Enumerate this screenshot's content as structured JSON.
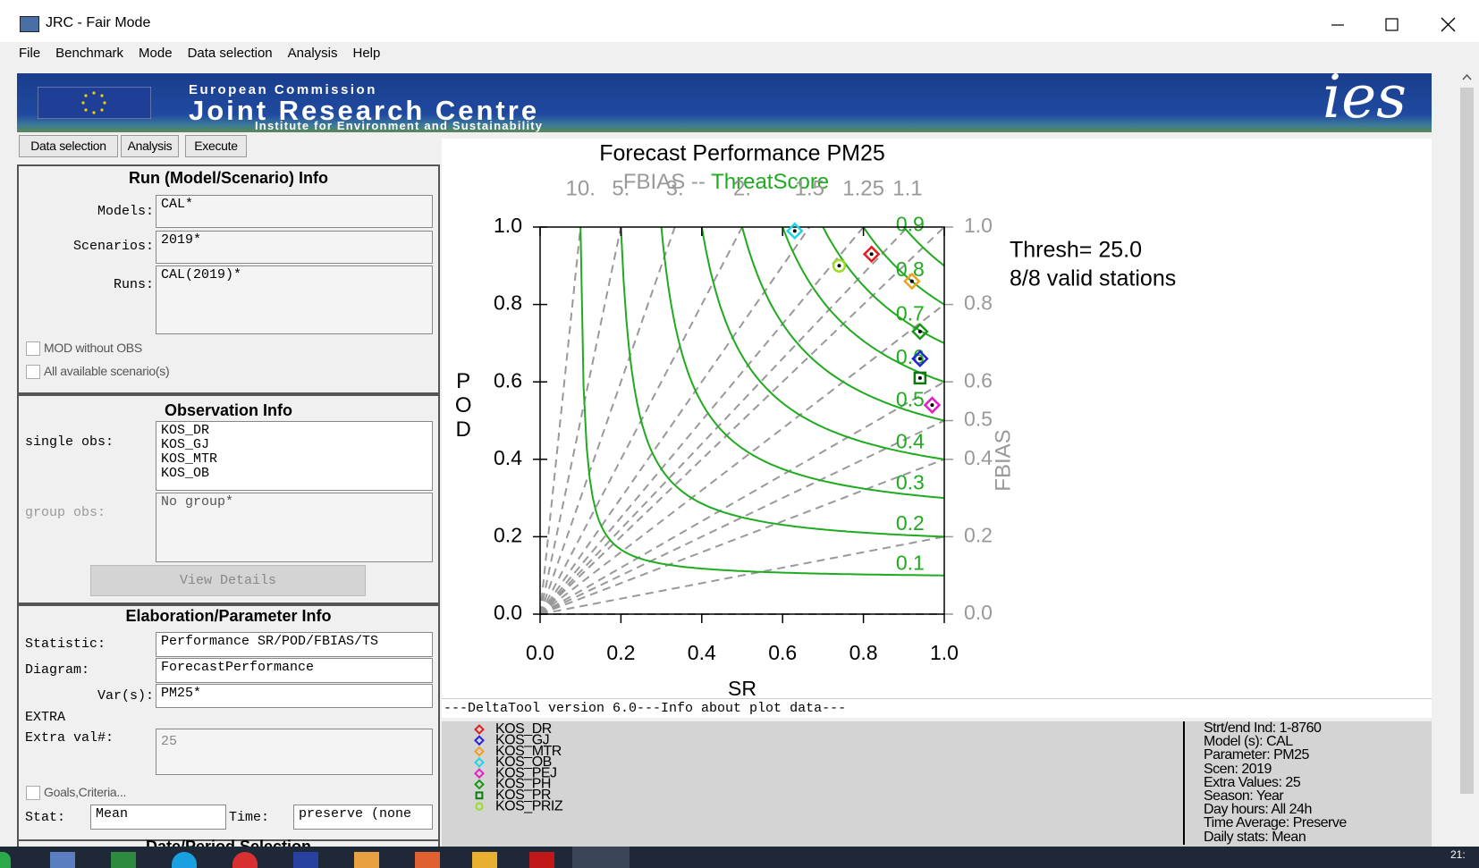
{
  "window": {
    "title": "JRC - Fair Mode"
  },
  "menu": [
    "File",
    "Benchmark",
    "Mode",
    "Data selection",
    "Analysis",
    "Help"
  ],
  "banner": {
    "org": "European Commission",
    "name": "Joint Research Centre",
    "institute": "Institute for Environment and Sustainability",
    "logo": "ies"
  },
  "tabs": [
    "Data selection",
    "Analysis",
    "Execute"
  ],
  "run_info": {
    "title": "Run (Model/Scenario) Info",
    "models_label": "Models:",
    "models": "CAL*",
    "scenarios_label": "Scenarios:",
    "scenarios": "2019*",
    "runs_label": "Runs:",
    "runs": "CAL(2019)*",
    "check1": "MOD without OBS",
    "check2": "All available scenario(s)"
  },
  "obs_info": {
    "title": "Observation Info",
    "single_label": "single obs:",
    "single": [
      "KOS_DR",
      "KOS_GJ",
      "KOS_MTR",
      "KOS_OB"
    ],
    "group_label": "group obs:",
    "group": "No group*",
    "button": "View Details"
  },
  "elab": {
    "title": "Elaboration/Parameter Info",
    "statistic_label": "Statistic:",
    "statistic": "Performance SR/POD/FBIAS/TS",
    "diagram_label": "Diagram:",
    "diagram": "ForecastPerformance",
    "vars_label": "Var(s):",
    "vars": "PM25*",
    "extra": "EXTRA",
    "extra_label": "Extra val#:",
    "extra_val": "25",
    "goals": "Goals,Criteria...",
    "stat_label": "Stat:",
    "stat": "Mean",
    "time_label": "Time:",
    "time": "preserve (none"
  },
  "date_title": "Date/Period Selection",
  "chart_data": {
    "type": "scatter",
    "title": "Forecast Performance  PM25",
    "subtitle_fbias": "FBIAS -- ",
    "subtitle_ts": "ThreatScore",
    "x_label": "SR",
    "y_label": "POD",
    "y2_label": "FBIAS",
    "xlim": [
      0,
      1
    ],
    "ylim": [
      0,
      1
    ],
    "xticks": [
      {
        "value": 0,
        "label": "0.0"
      },
      0.2,
      0.4,
      0.6,
      0.8,
      {
        "value": 1,
        "label": "1.0"
      }
    ],
    "yticks": [
      {
        "value": 0,
        "label": "0.0"
      },
      0.2,
      0.4,
      0.6,
      0.8,
      {
        "value": 1,
        "label": "1.0"
      }
    ],
    "fbias_lines": [
      {
        "value": 10,
        "label": "10."
      },
      {
        "value": 5,
        "label": "5."
      },
      {
        "value": 3,
        "label": "3."
      },
      {
        "value": 2,
        "label": "2."
      },
      1.5,
      1.25,
      1.1,
      {
        "value": 1,
        "label": "1.0"
      },
      0.8,
      0.6,
      0.5,
      0.4,
      0.2,
      {
        "value": 0,
        "label": "0.0"
      }
    ],
    "fbias_color": "#999999",
    "threat_score_lines": [
      0.1,
      0.2,
      0.3,
      0.4,
      0.5,
      0.6,
      0.7,
      0.8,
      0.9
    ],
    "threat_color": "#1faa1f",
    "annotations": [
      "Thresh= 25.0",
      "8/8 valid stations"
    ],
    "series": [
      {
        "name": "KOS_DR",
        "color": "#e32020",
        "marker": "diamond",
        "x": [
          0.82
        ],
        "values": [
          0.93
        ]
      },
      {
        "name": "KOS_GJ",
        "color": "#2424e0",
        "marker": "diamond",
        "x": [
          0.94
        ],
        "values": [
          0.66
        ]
      },
      {
        "name": "KOS_MTR",
        "color": "#f0a020",
        "marker": "diamond",
        "x": [
          0.92
        ],
        "values": [
          0.86
        ]
      },
      {
        "name": "KOS_OB",
        "color": "#20d4e4",
        "marker": "diamond",
        "x": [
          0.63
        ],
        "values": [
          0.99
        ]
      },
      {
        "name": "KOS_PEJ",
        "color": "#e020c4",
        "marker": "diamond",
        "x": [
          0.97
        ],
        "values": [
          0.54
        ]
      },
      {
        "name": "KOS_PH",
        "color": "#189818",
        "marker": "diamond",
        "x": [
          0.94
        ],
        "values": [
          0.73
        ]
      },
      {
        "name": "KOS_PR",
        "color": "#0c7a0c",
        "marker": "square",
        "x": [
          0.94
        ],
        "values": [
          0.61
        ]
      },
      {
        "name": "KOS_PRIZ",
        "color": "#98e020",
        "marker": "circle",
        "x": [
          0.74
        ],
        "values": [
          0.9
        ]
      }
    ]
  },
  "info": {
    "header": "---DeltaTool version 6.0---Info about plot data---",
    "details": [
      "Strt/end Ind: 1-8760",
      "Model (s): CAL",
      "Parameter: PM25",
      "Scen: 2019",
      "Extra Values: 25",
      "Season: Year",
      "Day hours: All 24h",
      "Time Average: Preserve",
      "Daily stats: Mean"
    ]
  },
  "taskbar": {
    "clock": "21:"
  }
}
